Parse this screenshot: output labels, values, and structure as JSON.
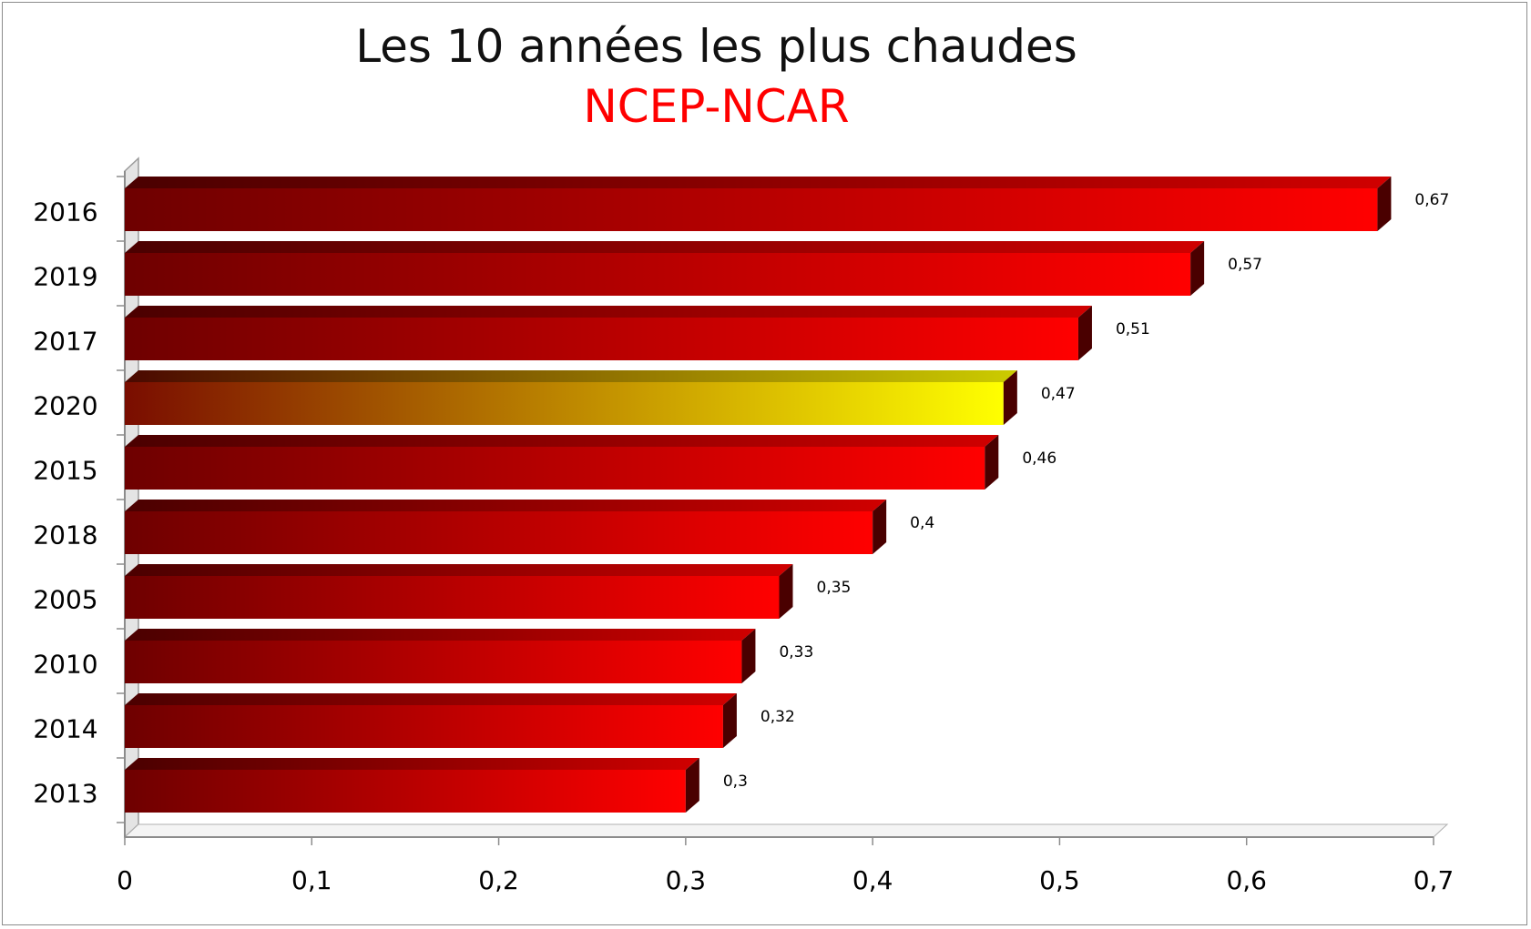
{
  "chart_data": {
    "type": "bar",
    "orientation": "horizontal",
    "title": "Les 10 années les plus chaudes",
    "subtitle": "NCEP-NCAR",
    "categories": [
      "2016",
      "2019",
      "2017",
      "2020",
      "2015",
      "2018",
      "2005",
      "2010",
      "2014",
      "2013"
    ],
    "values": [
      0.67,
      0.57,
      0.51,
      0.47,
      0.46,
      0.4,
      0.35,
      0.33,
      0.32,
      0.3
    ],
    "data_labels": [
      "0,67",
      "0,57",
      "0,51",
      "0,47",
      "0,46",
      "0,4",
      "0,35",
      "0,33",
      "0,32",
      "0,3"
    ],
    "highlight_category": "2020",
    "xlim": [
      0,
      0.7
    ],
    "x_ticks": [
      0,
      0.1,
      0.2,
      0.3,
      0.4,
      0.5,
      0.6,
      0.7
    ],
    "x_tick_labels": [
      "0",
      "0,1",
      "0,2",
      "0,3",
      "0,4",
      "0,5",
      "0,6",
      "0,7"
    ],
    "xlabel": "",
    "ylabel": "",
    "grid": false,
    "legend": "none",
    "colors": {
      "bar_dark": "#6e0000",
      "bar_light": "#ff0000",
      "highlight_dark": "#7a0d00",
      "highlight_light": "#ffff00",
      "title": "#111111",
      "subtitle": "#ff0000"
    }
  }
}
